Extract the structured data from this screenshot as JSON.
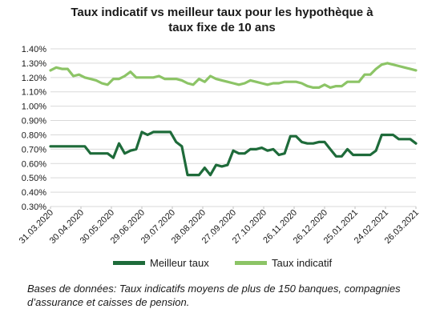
{
  "chart_data": {
    "type": "line",
    "title_line1": "Taux indicatif vs meilleur taux pour les hypothèque à",
    "title_line2": "taux fixe de 10 ans",
    "xlabel": "",
    "ylabel": "",
    "ylim": [
      0.3,
      1.4
    ],
    "yticks": [
      "0.30%",
      "0.40%",
      "0.50%",
      "0.60%",
      "0.70%",
      "0.80%",
      "0.90%",
      "1.00%",
      "1.10%",
      "1.20%",
      "1.30%",
      "1.40%"
    ],
    "ytick_values": [
      0.3,
      0.4,
      0.5,
      0.6,
      0.7,
      0.8,
      0.9,
      1.0,
      1.1,
      1.2,
      1.3,
      1.4
    ],
    "xticks": [
      "31.03.2020",
      "30.04.2020",
      "30.05.2020",
      "29.06.2020",
      "29.07.2020",
      "28.08.2020",
      "27.09.2020",
      "27.10.2020",
      "26.11.2020",
      "26.12.2020",
      "25.01.2021",
      "24.02.2021",
      "26.03.2021"
    ],
    "grid": true,
    "legend_position": "bottom",
    "series": [
      {
        "name": "Meilleur taux",
        "color": "#1e6b3a",
        "values": [
          0.72,
          0.72,
          0.72,
          0.72,
          0.72,
          0.72,
          0.72,
          0.67,
          0.67,
          0.67,
          0.67,
          0.64,
          0.74,
          0.67,
          0.69,
          0.7,
          0.82,
          0.8,
          0.82,
          0.82,
          0.82,
          0.82,
          0.75,
          0.72,
          0.52,
          0.52,
          0.52,
          0.57,
          0.52,
          0.59,
          0.58,
          0.59,
          0.69,
          0.67,
          0.67,
          0.7,
          0.7,
          0.71,
          0.69,
          0.7,
          0.66,
          0.67,
          0.79,
          0.79,
          0.75,
          0.74,
          0.74,
          0.75,
          0.75,
          0.7,
          0.65,
          0.65,
          0.7,
          0.66,
          0.66,
          0.66,
          0.66,
          0.69,
          0.8,
          0.8,
          0.8,
          0.77,
          0.77,
          0.77,
          0.74
        ]
      },
      {
        "name": "Taux indicatif",
        "color": "#8cc466",
        "values": [
          1.25,
          1.27,
          1.26,
          1.26,
          1.21,
          1.22,
          1.2,
          1.19,
          1.18,
          1.16,
          1.15,
          1.19,
          1.19,
          1.21,
          1.24,
          1.2,
          1.2,
          1.2,
          1.2,
          1.21,
          1.19,
          1.19,
          1.19,
          1.18,
          1.16,
          1.15,
          1.19,
          1.17,
          1.21,
          1.19,
          1.18,
          1.17,
          1.16,
          1.15,
          1.16,
          1.18,
          1.17,
          1.16,
          1.15,
          1.16,
          1.16,
          1.17,
          1.17,
          1.17,
          1.16,
          1.14,
          1.13,
          1.13,
          1.15,
          1.13,
          1.14,
          1.14,
          1.17,
          1.17,
          1.17,
          1.22,
          1.22,
          1.26,
          1.29,
          1.3,
          1.29,
          1.28,
          1.27,
          1.26,
          1.25
        ]
      }
    ]
  },
  "source_text": "Bases de données: Taux indicatifs moyens de plus de 150 banques, compagnies d’assurance et caisses de pension."
}
